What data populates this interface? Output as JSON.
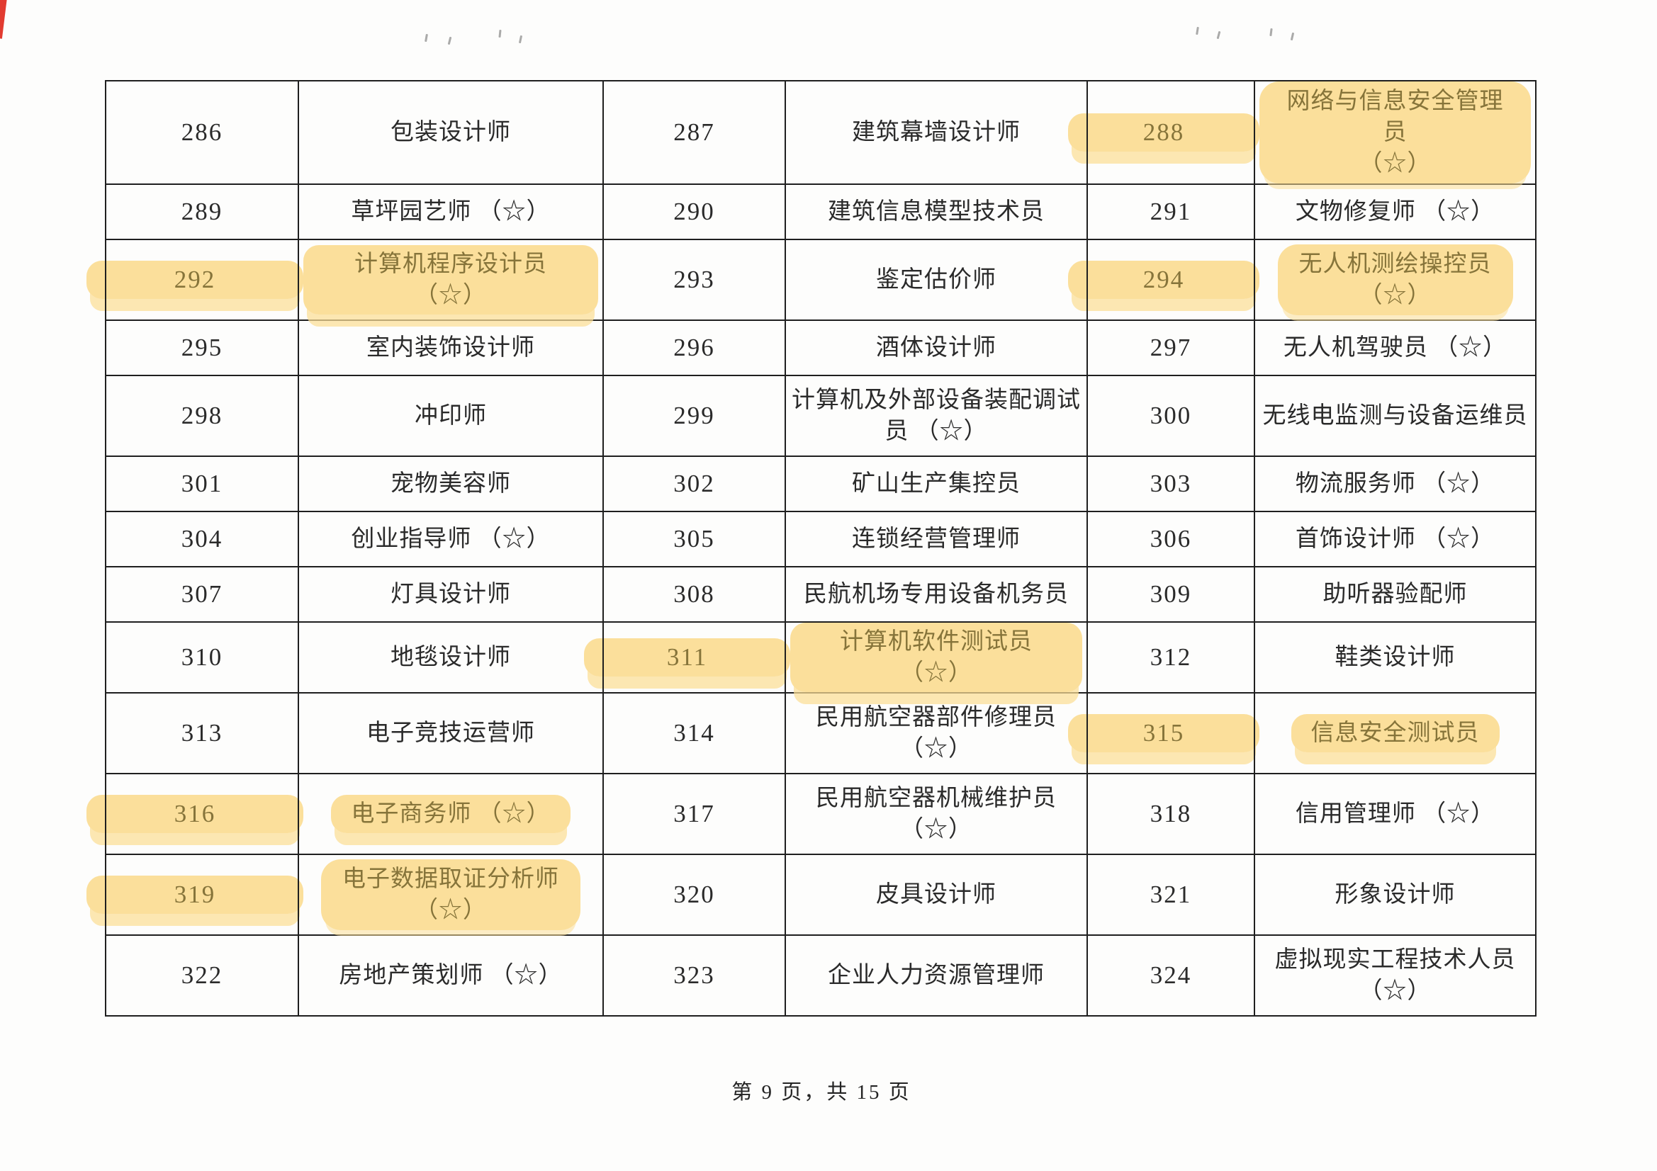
{
  "document": {
    "footer": "第 9 页，共 15 页",
    "highlight_color": "#fbdb8d",
    "rows": [
      [
        {
          "no": "286",
          "name": "包装设计师"
        },
        {
          "no": "287",
          "name": "建筑幕墙设计师"
        },
        {
          "no": "288",
          "name": "网络与信息安全管理员",
          "name2": "（☆）",
          "hl": true
        }
      ],
      [
        {
          "no": "289",
          "name": "草坪园艺师 （☆）"
        },
        {
          "no": "290",
          "name": "建筑信息模型技术员"
        },
        {
          "no": "291",
          "name": "文物修复师 （☆）"
        }
      ],
      [
        {
          "no": "292",
          "name": "计算机程序设计员 （☆）",
          "hl": true
        },
        {
          "no": "293",
          "name": "鉴定估价师"
        },
        {
          "no": "294",
          "name": "无人机测绘操控员",
          "name2": "（☆）",
          "hl": true
        }
      ],
      [
        {
          "no": "295",
          "name": "室内装饰设计师"
        },
        {
          "no": "296",
          "name": "酒体设计师"
        },
        {
          "no": "297",
          "name": "无人机驾驶员 （☆）"
        }
      ],
      [
        {
          "no": "298",
          "name": "冲印师"
        },
        {
          "no": "299",
          "name": "计算机及外部设备装配调试",
          "name2": "员 （☆）"
        },
        {
          "no": "300",
          "name": "无线电监测与设备运维员"
        }
      ],
      [
        {
          "no": "301",
          "name": "宠物美容师"
        },
        {
          "no": "302",
          "name": "矿山生产集控员"
        },
        {
          "no": "303",
          "name": "物流服务师 （☆）"
        }
      ],
      [
        {
          "no": "304",
          "name": "创业指导师 （☆）"
        },
        {
          "no": "305",
          "name": "连锁经营管理师"
        },
        {
          "no": "306",
          "name": "首饰设计师 （☆）"
        }
      ],
      [
        {
          "no": "307",
          "name": "灯具设计师"
        },
        {
          "no": "308",
          "name": "民航机场专用设备机务员"
        },
        {
          "no": "309",
          "name": "助听器验配师"
        }
      ],
      [
        {
          "no": "310",
          "name": "地毯设计师"
        },
        {
          "no": "311",
          "name": "计算机软件测试员 （☆）",
          "hl": true
        },
        {
          "no": "312",
          "name": "鞋类设计师"
        }
      ],
      [
        {
          "no": "313",
          "name": "电子竞技运营师"
        },
        {
          "no": "314",
          "name": "民用航空器部件修理员",
          "name2": "（☆）"
        },
        {
          "no": "315",
          "name": "信息安全测试员",
          "hl": true
        }
      ],
      [
        {
          "no": "316",
          "name": "电子商务师 （☆）",
          "hl": true
        },
        {
          "no": "317",
          "name": "民用航空器机械维护员",
          "name2": "（☆）"
        },
        {
          "no": "318",
          "name": "信用管理师 （☆）"
        }
      ],
      [
        {
          "no": "319",
          "name": "电子数据取证分析师",
          "name2": "（☆）",
          "hl": true
        },
        {
          "no": "320",
          "name": "皮具设计师"
        },
        {
          "no": "321",
          "name": "形象设计师"
        }
      ],
      [
        {
          "no": "322",
          "name": "房地产策划师 （☆）"
        },
        {
          "no": "323",
          "name": "企业人力资源管理师"
        },
        {
          "no": "324",
          "name": "虚拟现实工程技术人员",
          "name2": "（☆）"
        }
      ]
    ]
  }
}
